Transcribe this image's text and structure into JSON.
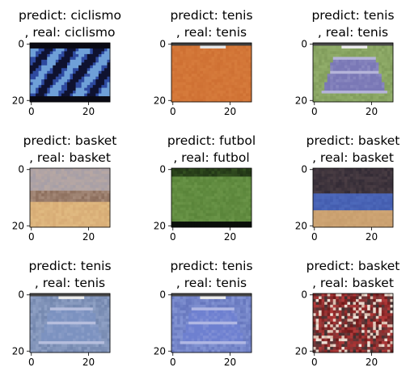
{
  "figure": {
    "tick_labels": {
      "x": [
        "0",
        "20"
      ],
      "y": [
        "0",
        "20"
      ]
    },
    "panels": [
      {
        "predict_line": "predict: ciclismo",
        "real_line": ", real: ciclismo",
        "palette": {
          "dark": "#0f1230",
          "mid": "#2e4aa0",
          "light": "#6fa0d8"
        },
        "theme": "cycling"
      },
      {
        "predict_line": "predict: tenis",
        "real_line": ", real: tenis",
        "palette": {
          "dark": "#a8501e",
          "mid": "#c9682c",
          "light": "#e08a48"
        },
        "theme": "clay"
      },
      {
        "predict_line": "predict: tenis",
        "real_line": ", real: tenis",
        "palette": {
          "dark": "#6f8a4c",
          "mid": "#7a78b6",
          "light": "#a3c07a"
        },
        "theme": "court-green"
      },
      {
        "predict_line": "predict: basket",
        "real_line": ", real: basket",
        "palette": {
          "dark": "#7a5a48",
          "mid": "#c7b0a0",
          "light": "#e4bf85"
        },
        "theme": "basket-light"
      },
      {
        "predict_line": "predict: futbol",
        "real_line": ", real: futbol",
        "palette": {
          "dark": "#1a2a12",
          "mid": "#4f7a30",
          "light": "#7ea85a"
        },
        "theme": "pitch"
      },
      {
        "predict_line": "predict: basket",
        "real_line": ", real: basket",
        "palette": {
          "dark": "#2a2430",
          "mid": "#3d55a8",
          "light": "#c49a6a"
        },
        "theme": "basket-dark"
      },
      {
        "predict_line": "predict: tenis",
        "real_line": ", real: tenis",
        "palette": {
          "dark": "#5a6f9a",
          "mid": "#7c92c0",
          "light": "#a8b8d8"
        },
        "theme": "court-blue"
      },
      {
        "predict_line": "predict: tenis",
        "real_line": ", real: tenis",
        "palette": {
          "dark": "#4a5aa8",
          "mid": "#6e80d0",
          "light": "#9fb0e8"
        },
        "theme": "court-violet"
      },
      {
        "predict_line": "predict: basket",
        "real_line": ", real: basket",
        "palette": {
          "dark": "#6a1a1a",
          "mid": "#b43a3a",
          "light": "#d8b8a8"
        },
        "theme": "basket-red"
      }
    ]
  }
}
